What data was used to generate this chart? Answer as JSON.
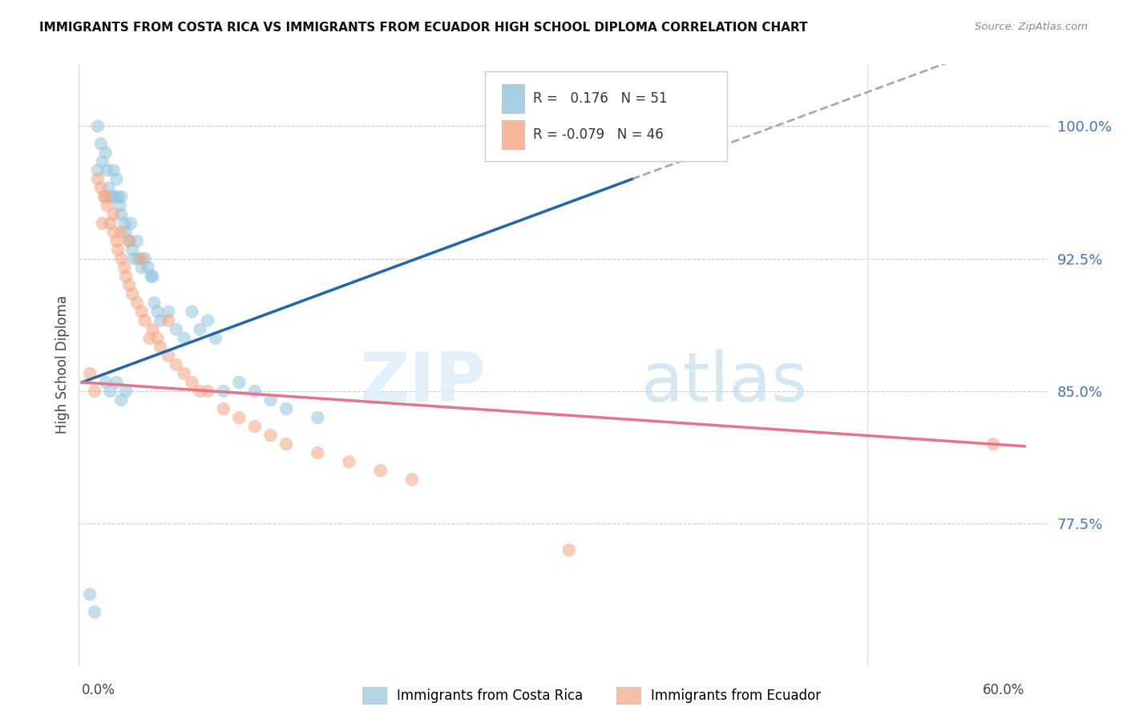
{
  "title": "IMMIGRANTS FROM COSTA RICA VS IMMIGRANTS FROM ECUADOR HIGH SCHOOL DIPLOMA CORRELATION CHART",
  "source": "Source: ZipAtlas.com",
  "ylabel": "High School Diploma",
  "ytick_labels": [
    "100.0%",
    "92.5%",
    "85.0%",
    "77.5%"
  ],
  "ytick_values": [
    1.0,
    0.925,
    0.85,
    0.775
  ],
  "xlim": [
    0.0,
    0.6
  ],
  "ylim": [
    0.695,
    1.035
  ],
  "costa_rica_color": "#92c5de",
  "ecuador_color": "#f4a582",
  "costa_rica_line_color": "#2166ac",
  "ecuador_line_color": "#e8748a",
  "dashed_line_color": "#aaaaaa",
  "watermark_zip": "ZIP",
  "watermark_atlas": "atlas",
  "costa_rica_R": 0.176,
  "costa_rica_N": 51,
  "ecuador_R": -0.079,
  "ecuador_N": 46,
  "costa_rica_x": [
    0.005,
    0.008,
    0.01,
    0.01,
    0.012,
    0.013,
    0.015,
    0.016,
    0.017,
    0.018,
    0.02,
    0.02,
    0.022,
    0.023,
    0.024,
    0.025,
    0.025,
    0.027,
    0.028,
    0.03,
    0.031,
    0.032,
    0.033,
    0.035,
    0.036,
    0.038,
    0.04,
    0.042,
    0.044,
    0.045,
    0.046,
    0.048,
    0.05,
    0.055,
    0.06,
    0.065,
    0.07,
    0.075,
    0.08,
    0.085,
    0.09,
    0.1,
    0.11,
    0.12,
    0.13,
    0.15,
    0.022,
    0.028,
    0.015,
    0.018,
    0.025
  ],
  "costa_rica_y": [
    0.735,
    0.725,
    0.975,
    1.0,
    0.99,
    0.98,
    0.985,
    0.975,
    0.965,
    0.96,
    0.975,
    0.96,
    0.97,
    0.96,
    0.955,
    0.96,
    0.95,
    0.945,
    0.94,
    0.935,
    0.945,
    0.93,
    0.925,
    0.935,
    0.925,
    0.92,
    0.925,
    0.92,
    0.915,
    0.915,
    0.9,
    0.895,
    0.89,
    0.895,
    0.885,
    0.88,
    0.895,
    0.885,
    0.89,
    0.88,
    0.85,
    0.855,
    0.85,
    0.845,
    0.84,
    0.835,
    0.855,
    0.85,
    0.855,
    0.85,
    0.845
  ],
  "ecuador_x": [
    0.005,
    0.008,
    0.01,
    0.012,
    0.013,
    0.015,
    0.016,
    0.018,
    0.02,
    0.022,
    0.023,
    0.025,
    0.027,
    0.028,
    0.03,
    0.032,
    0.035,
    0.038,
    0.04,
    0.045,
    0.048,
    0.05,
    0.055,
    0.06,
    0.065,
    0.07,
    0.075,
    0.08,
    0.09,
    0.1,
    0.11,
    0.12,
    0.13,
    0.15,
    0.17,
    0.19,
    0.21,
    0.014,
    0.02,
    0.025,
    0.03,
    0.038,
    0.043,
    0.055,
    0.31,
    0.58
  ],
  "ecuador_y": [
    0.86,
    0.85,
    0.97,
    0.965,
    0.945,
    0.96,
    0.955,
    0.945,
    0.94,
    0.935,
    0.93,
    0.925,
    0.92,
    0.915,
    0.91,
    0.905,
    0.9,
    0.895,
    0.89,
    0.885,
    0.88,
    0.875,
    0.87,
    0.865,
    0.86,
    0.855,
    0.85,
    0.85,
    0.84,
    0.835,
    0.83,
    0.825,
    0.82,
    0.815,
    0.81,
    0.805,
    0.8,
    0.96,
    0.95,
    0.94,
    0.935,
    0.925,
    0.88,
    0.89,
    0.76,
    0.82
  ]
}
